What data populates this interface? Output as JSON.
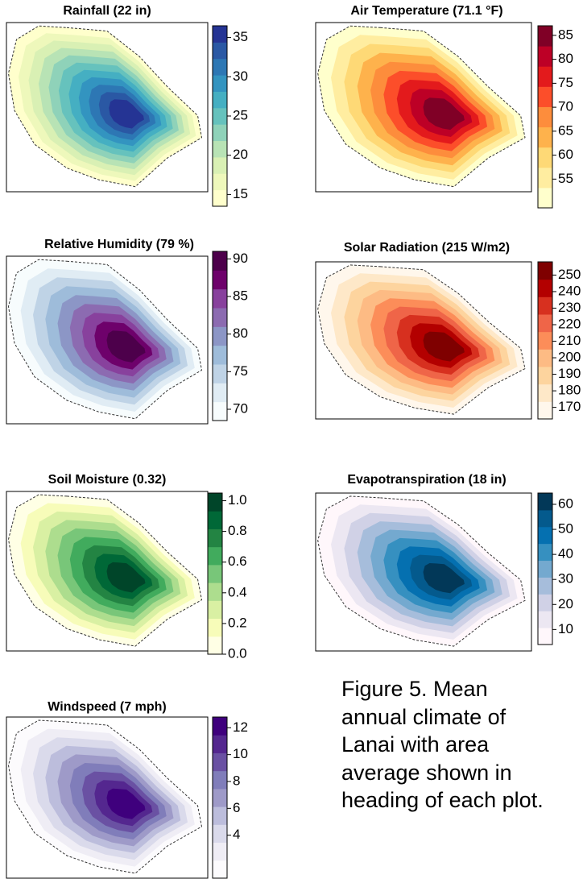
{
  "chart_data": [
    {
      "type": "map",
      "title": "Rainfall (22 in)",
      "clim": [
        13.5,
        36.5
      ],
      "cticks": [
        15,
        20,
        25,
        30,
        35
      ],
      "colors": [
        "#ffffcc",
        "#eef8bb",
        "#d9f0b4",
        "#b8e3b5",
        "#8fd2b9",
        "#66c2bd",
        "#45afc2",
        "#3394c0",
        "#2d77b4",
        "#2a58a4",
        "#253494"
      ]
    },
    {
      "type": "map",
      "title": "Air Temperature (71.1 °F)",
      "clim": [
        49,
        87
      ],
      "cticks": [
        55,
        60,
        65,
        70,
        75,
        80,
        85
      ],
      "colors": [
        "#ffffcc",
        "#ffeda0",
        "#fed976",
        "#feb24c",
        "#fd8d3c",
        "#fc4e2a",
        "#e31a1c",
        "#bd0026",
        "#800026"
      ]
    },
    {
      "type": "map",
      "title": "Relative Humidity (79 %)",
      "clim": [
        68.5,
        91
      ],
      "cticks": [
        70,
        75,
        80,
        85,
        90
      ],
      "colors": [
        "#f7fcfd",
        "#e0ecf4",
        "#bfd3e6",
        "#9ebcda",
        "#8c96c6",
        "#8c6bb1",
        "#88419d",
        "#6e016b",
        "#4d004b"
      ]
    },
    {
      "type": "map",
      "title": "Solar Radiation (215 W/m2)",
      "clim": [
        163,
        258
      ],
      "cticks": [
        170,
        180,
        190,
        200,
        210,
        220,
        230,
        240,
        250
      ],
      "colors": [
        "#fff7ec",
        "#fee8c8",
        "#fdd49e",
        "#fdbb84",
        "#fc8d59",
        "#ef6548",
        "#d7301f",
        "#b30000",
        "#7f0000"
      ]
    },
    {
      "type": "map",
      "title": "Soil Moisture (0.32)",
      "clim": [
        0,
        1.05
      ],
      "cticks": [
        {
          "value": 0,
          "label": "0.0"
        },
        0.2,
        0.4,
        0.6,
        0.8,
        {
          "value": 1,
          "label": "1.0"
        }
      ],
      "colors": [
        "#ffffe5",
        "#f7fcb9",
        "#d9f0a3",
        "#addd8e",
        "#78c679",
        "#41ab5d",
        "#238443",
        "#006837",
        "#004529"
      ]
    },
    {
      "type": "map",
      "title": "Evapotranspiration (18 in)",
      "clim": [
        4,
        64.5
      ],
      "cticks": [
        10,
        20,
        30,
        40,
        50,
        60
      ],
      "colors": [
        "#fff7fb",
        "#ece7f2",
        "#d0d1e6",
        "#a6bddb",
        "#74a9cf",
        "#3690c0",
        "#0570b0",
        "#045a8d",
        "#023858"
      ]
    },
    {
      "type": "map",
      "title": "Windspeed (7 mph)",
      "clim": [
        0.8,
        12.8
      ],
      "cticks": [
        4,
        6,
        8,
        10,
        12
      ],
      "colors": [
        "#fcfbfd",
        "#efedf5",
        "#dadaeb",
        "#bcbddc",
        "#9e9ac8",
        "#807dba",
        "#6a51a3",
        "#54278f",
        "#3f007d"
      ]
    }
  ],
  "caption": "Figure 5. Mean annual climate of Lanai with area average shown in heading of each plot."
}
